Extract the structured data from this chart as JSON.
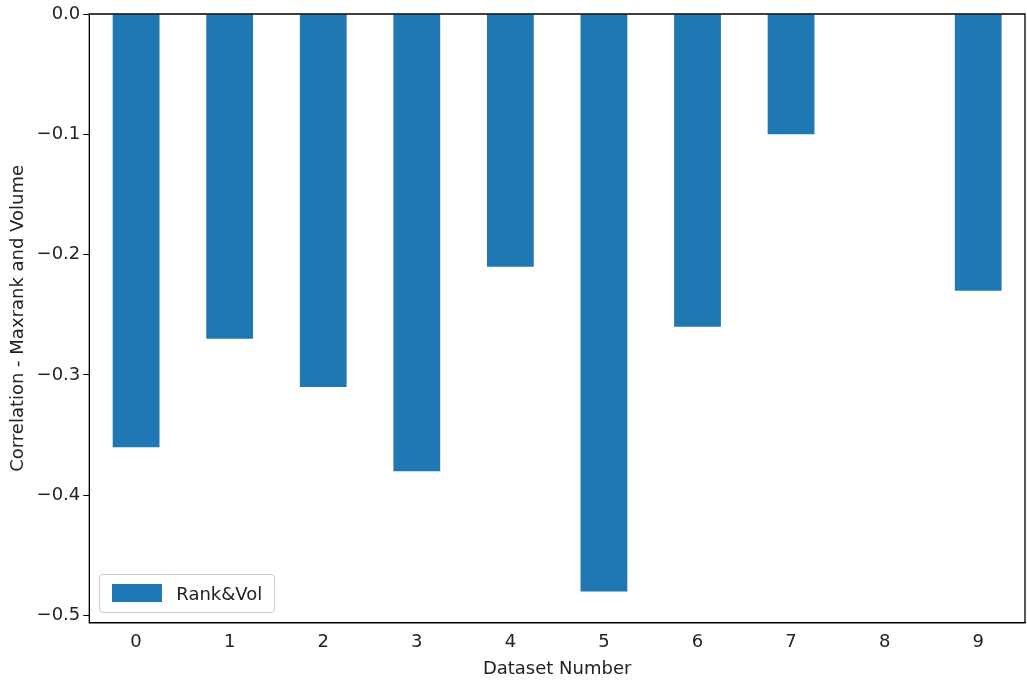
{
  "chart_data": {
    "type": "bar",
    "xlabel": "Dataset Number",
    "ylabel": "Correlation - Maxrank and Volume",
    "categories": [
      "0",
      "1",
      "2",
      "3",
      "4",
      "5",
      "6",
      "7",
      "8",
      "9"
    ],
    "series": [
      {
        "name": "Rank&Vol",
        "color": "#1f77b4",
        "values": [
          -0.36,
          -0.27,
          -0.31,
          -0.38,
          -0.21,
          -0.48,
          -0.26,
          -0.1,
          null,
          -0.23
        ]
      }
    ],
    "ylim": [
      -0.506,
      0
    ],
    "yticks": [
      {
        "value": 0,
        "label": "0.0"
      },
      {
        "value": -0.1,
        "label": "−0.1"
      },
      {
        "value": -0.2,
        "label": "−0.2"
      },
      {
        "value": -0.3,
        "label": "−0.3"
      },
      {
        "value": -0.4,
        "label": "−0.4"
      },
      {
        "value": -0.5,
        "label": "−0.5"
      }
    ],
    "grid": false,
    "legend": "bottom left"
  }
}
